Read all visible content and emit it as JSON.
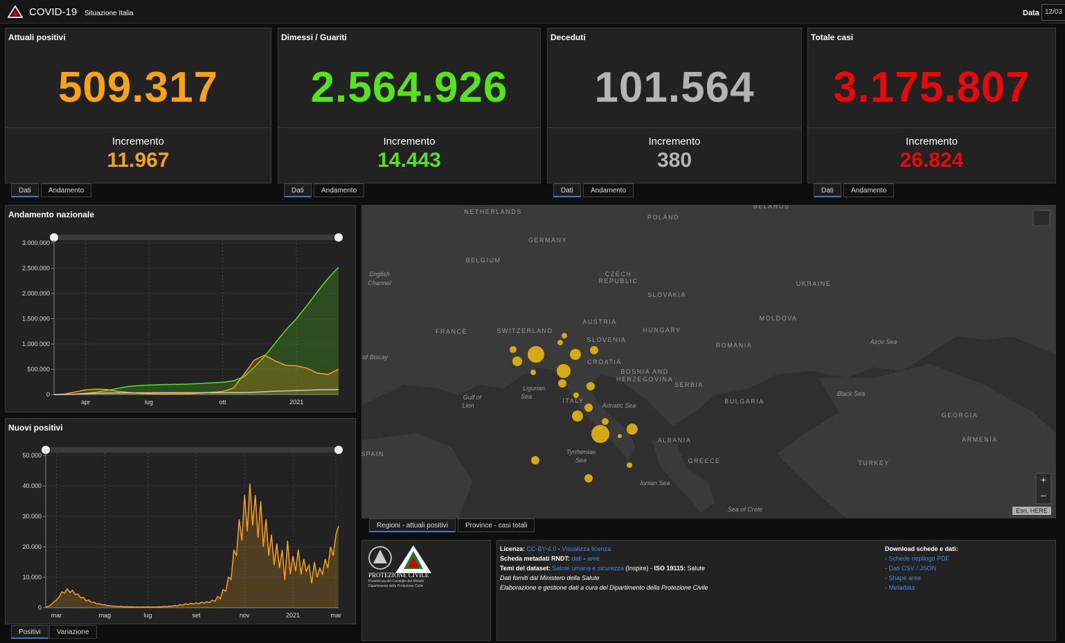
{
  "header": {
    "title": "COVID-19",
    "subtitle": "Situazione Italia",
    "date_label": "Data",
    "date_value": "12/03"
  },
  "cards": [
    {
      "title": "Attuali positivi",
      "value": "509.317",
      "increment_label": "Incremento",
      "increment": "11.967",
      "color": "#f7a21b"
    },
    {
      "title": "Dimessi / Guariti",
      "value": "2.564.926",
      "increment_label": "Incremento",
      "increment": "14.443",
      "color": "#56e31c"
    },
    {
      "title": "Deceduti",
      "value": "101.564",
      "increment_label": "Incremento",
      "increment": "380",
      "color": "#b3b3b3"
    },
    {
      "title": "Totale casi",
      "value": "3.175.807",
      "increment_label": "Incremento",
      "increment": "26.824",
      "color": "#e60a0a"
    }
  ],
  "card_tabs": [
    "Dati",
    "Andamento"
  ],
  "chart_tabs": [
    "Positivi",
    "Variazione"
  ],
  "chart_data": [
    {
      "type": "line",
      "title": "Andamento nazionale",
      "categories": [
        null,
        null,
        null,
        "apr",
        null,
        null,
        null,
        null,
        null,
        "lug",
        null,
        null,
        null,
        null,
        null,
        null,
        "ott",
        null,
        null,
        null,
        null,
        null,
        null,
        "2021",
        null,
        null,
        null,
        null
      ],
      "series": [
        {
          "name": "Dimessi / Guariti",
          "color": "#56e31c",
          "area": true,
          "values": [
            1,
            1000,
            7400,
            24400,
            48000,
            79000,
            121000,
            159000,
            177000,
            186000,
            194000,
            199000,
            203000,
            210000,
            221000,
            232000,
            244000,
            270000,
            350000,
            540000,
            760000,
            1020000,
            1280000,
            1500000,
            1760000,
            2040000,
            2300000,
            2520000
          ]
        },
        {
          "name": "Attuali positivi",
          "color": "#f7a21b",
          "area": true,
          "values": [
            229,
            7985,
            50418,
            91246,
            108257,
            99980,
            62752,
            42075,
            26274,
            16496,
            12919,
            12404,
            13791,
            19714,
            32078,
            45079,
            60134,
            126237,
            390000,
            680000,
            780000,
            663000,
            575000,
            570000,
            520000,
            420000,
            400000,
            500000
          ]
        },
        {
          "name": "Deceduti",
          "color": "#c8c8c8",
          "area": false,
          "values": [
            7,
            460,
            6100,
            16500,
            24100,
            29100,
            32000,
            33400,
            34400,
            34800,
            35000,
            35100,
            35200,
            35500,
            35600,
            35800,
            36000,
            36700,
            39000,
            45700,
            55600,
            65000,
            72400,
            79200,
            86400,
            91600,
            96000,
            100000
          ]
        }
      ],
      "ylim": [
        0,
        3000000
      ],
      "yticks": [
        0,
        {
          "value": 500000,
          "label": "500.000"
        },
        {
          "value": 1000000,
          "label": "1.000.000"
        },
        {
          "value": 1500000,
          "label": "1.500.000"
        },
        {
          "value": 2000000,
          "label": "2.000.000"
        },
        {
          "value": 2500000,
          "label": "2.500.000"
        },
        {
          "value": 3000000,
          "label": "3.000.000"
        }
      ]
    },
    {
      "type": "line",
      "title": "Nuovi positivi",
      "categories": [
        null,
        null,
        null,
        null,
        "mar",
        null,
        null,
        null,
        null,
        null,
        null,
        null,
        null,
        null,
        null,
        null,
        null,
        null,
        null,
        null,
        null,
        null,
        "mag",
        null,
        null,
        null,
        null,
        null,
        null,
        null,
        null,
        null,
        null,
        null,
        null,
        null,
        null,
        null,
        "lug",
        null,
        null,
        null,
        null,
        null,
        null,
        null,
        null,
        null,
        null,
        null,
        null,
        null,
        null,
        null,
        null,
        null,
        "set",
        null,
        null,
        null,
        null,
        null,
        null,
        null,
        null,
        null,
        null,
        null,
        null,
        null,
        null,
        null,
        null,
        null,
        "nov",
        null,
        null,
        null,
        null,
        null,
        null,
        null,
        null,
        null,
        null,
        null,
        null,
        null,
        null,
        null,
        null,
        null,
        "2021",
        null,
        null,
        null,
        null,
        null,
        null,
        null,
        null,
        null,
        null,
        null,
        null,
        null,
        null,
        null,
        "mar",
        null
      ],
      "series": [
        {
          "name": "Nuovi positivi",
          "color": "#f7a21b",
          "area": true,
          "values": [
            200,
            400,
            1000,
            1800,
            2500,
            3500,
            5200,
            4800,
            6200,
            5000,
            5700,
            4300,
            4500,
            3200,
            3400,
            2300,
            2500,
            1700,
            1800,
            1200,
            1300,
            900,
            1000,
            700,
            650,
            500,
            450,
            350,
            400,
            300,
            330,
            250,
            280,
            200,
            250,
            190,
            230,
            180,
            220,
            190,
            250,
            200,
            300,
            250,
            400,
            300,
            500,
            450,
            700,
            600,
            1000,
            800,
            1300,
            1100,
            1400,
            1200,
            1600,
            1300,
            1800,
            1500,
            1900,
            1700,
            2500,
            2100,
            3700,
            2900,
            5900,
            5400,
            10000,
            9300,
            19000,
            17000,
            29000,
            22000,
            37000,
            25000,
            40800,
            27000,
            37000,
            23000,
            35000,
            20000,
            29000,
            17000,
            24000,
            14000,
            21000,
            13000,
            19000,
            9000,
            22000,
            11000,
            17000,
            12000,
            19000,
            11000,
            16000,
            12000,
            14000,
            8000,
            15000,
            10000,
            13000,
            11000,
            16000,
            13000,
            20000,
            17000,
            24000,
            26824
          ]
        }
      ],
      "ylim": [
        0,
        50000
      ],
      "yticks": [
        0,
        {
          "value": 10000,
          "label": "10.000"
        },
        {
          "value": 20000,
          "label": "20.000"
        },
        {
          "value": 30000,
          "label": "30.000"
        },
        {
          "value": 40000,
          "label": "40.000"
        },
        {
          "value": 50000,
          "label": "50.000"
        }
      ]
    }
  ],
  "map": {
    "labels": [
      "NETHERLANDS",
      "POLAND",
      "BELARUS",
      "GERMANY",
      "BELGIUM",
      "CZECH",
      "REPUBLIC",
      "English",
      "Channel",
      "UKRAINE",
      "SLOVAKIA",
      "AUSTRIA",
      "HUNGARY",
      "MOLDOVA",
      "FRANCE",
      "SWITZERLAND",
      "SLOVENIA",
      "Azov Sea",
      "ROMANIA",
      "of Biscay",
      "CROATIA",
      "BOSNIA AND",
      "HERZEGOVINA",
      "SERBIA",
      "Ligurian",
      "Sea",
      "ITALY",
      "Gulf of",
      "Lion",
      "Adriatic Sea",
      "BULGARIA",
      "Black Sea",
      "GEORGIA",
      "ALBANIA",
      "ARMENIA",
      "SPAIN",
      "Tyrrhenian",
      "Sea",
      "GREECE",
      "TURKEY",
      "Ionian Sea",
      "Sea of Crete"
    ],
    "attribution": "Esri, HERE",
    "zoom_in": "+",
    "zoom_out": "–",
    "tabs": [
      "Regioni - attuali positivi",
      "Province - casi totali"
    ]
  },
  "logo": {
    "name": "PROTEZIONE CIVILE",
    "line1": "Presidenza del Consiglio dei Ministri",
    "line2": "Dipartimento della Protezione Civile"
  },
  "info": [
    [
      {
        "text": "Licenza: ",
        "style": "bold"
      },
      {
        "text": "CC-BY-4.0",
        "style": "link"
      },
      {
        "text": " - ",
        "style": "plain"
      },
      {
        "text": "Visualizza licenza",
        "style": "link"
      }
    ],
    [
      {
        "text": "Scheda metadati RNDT: ",
        "style": "bold"
      },
      {
        "text": "dati",
        "style": "link"
      },
      {
        "text": " - ",
        "style": "plain"
      },
      {
        "text": "aree",
        "style": "link"
      }
    ],
    [
      {
        "text": "Temi del dataset: ",
        "style": "bold"
      },
      {
        "text": "Salute umana e sicurezza",
        "style": "link"
      },
      {
        "text": " (Inspire) - ",
        "style": "plain"
      },
      {
        "text": "ISO 19115: ",
        "style": "bold"
      },
      {
        "text": "Salute",
        "style": "plain"
      }
    ],
    [
      {
        "text": "Dati forniti dal Ministero della Salute",
        "style": "italic"
      }
    ],
    [
      {
        "text": "Elaborazione e gestione dati a cura del Dipartimento della Protezione Civile",
        "style": "italic"
      }
    ]
  ],
  "downloads": {
    "title": "Download schede e dati:",
    "items": [
      "- Schede riepilogo PDF",
      "- Dati CSV / JSON",
      "- Shape aree",
      "- Metadata"
    ]
  }
}
